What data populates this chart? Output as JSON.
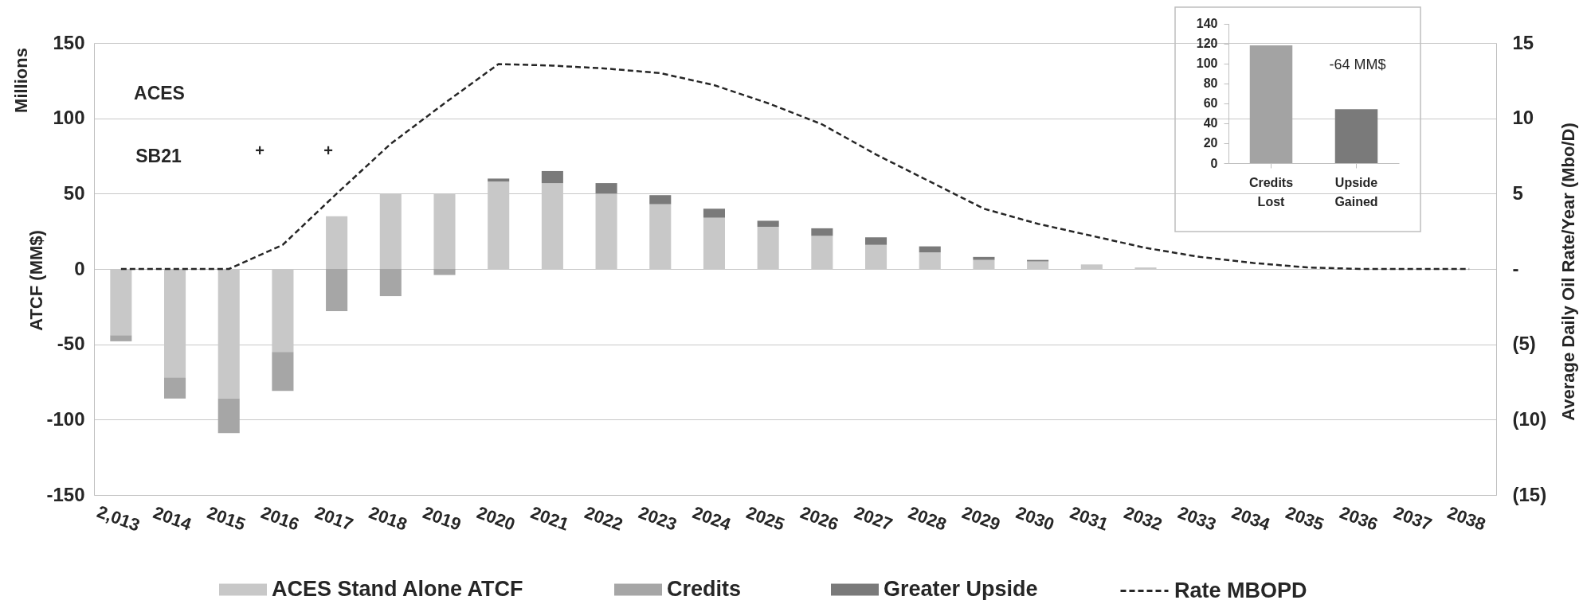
{
  "chart_data": [
    {
      "type": "bar",
      "stacked": true,
      "categories": [
        "2,013",
        "2014",
        "2015",
        "2016",
        "2017",
        "2018",
        "2019",
        "2020",
        "2021",
        "2022",
        "2023",
        "2024",
        "2025",
        "2026",
        "2027",
        "2028",
        "2029",
        "2030",
        "2031",
        "2032",
        "2033",
        "2034",
        "2035",
        "2036",
        "2037",
        "2038"
      ],
      "series": [
        {
          "name": "ACES Stand Alone ATCF",
          "color": "#c8c8c8",
          "values": [
            -44,
            -72,
            -86,
            -55,
            35,
            50,
            50,
            58,
            57,
            50,
            43,
            34,
            28,
            22,
            16,
            11,
            6,
            5,
            3,
            1,
            null,
            null,
            null,
            null,
            null,
            null
          ]
        },
        {
          "name": "Credits",
          "color": "#a6a6a6",
          "values": [
            -4,
            -14,
            -23,
            -26,
            -28,
            -18,
            -4,
            null,
            null,
            null,
            null,
            null,
            null,
            null,
            null,
            null,
            null,
            null,
            null,
            null,
            null,
            null,
            null,
            null,
            null,
            null
          ]
        },
        {
          "name": "Greater Upside",
          "color": "#7a7a7a",
          "values": [
            null,
            null,
            null,
            null,
            null,
            null,
            null,
            2,
            8,
            7,
            6,
            6,
            4,
            5,
            5,
            4,
            2,
            1,
            null,
            null,
            null,
            null,
            null,
            null,
            null,
            null
          ]
        },
        {
          "name": "Rate MBOPD",
          "type": "line",
          "axis": "y2",
          "color": "#262626",
          "values": [
            0,
            0,
            0,
            1.6,
            5.0,
            8.3,
            11.0,
            13.6,
            13.5,
            13.3,
            13.0,
            12.2,
            11.0,
            9.6,
            7.6,
            5.8,
            4.0,
            3.0,
            2.2,
            1.4,
            0.8,
            0.4,
            0.1,
            0,
            0,
            0
          ]
        }
      ],
      "line_style": "dashed",
      "marker": "none",
      "ylabel": "ATCF (MM$)",
      "y2label": "Average Daily Oil Rate/Year (Mbo/D)",
      "ylim": [
        -150,
        150
      ],
      "yticks": [
        -150,
        -100,
        -50,
        0,
        50,
        100,
        150
      ],
      "y2lim": [
        -15,
        15
      ],
      "y2ticks": [
        {
          "value": -15,
          "label": "(15)"
        },
        {
          "value": -10,
          "label": "(10)"
        },
        {
          "value": -5,
          "label": "(5)"
        },
        {
          "value": 0,
          "label": "-"
        },
        5,
        10,
        15
      ],
      "grid": "y",
      "legend": "bottom",
      "annotations": [
        "Millions",
        "ACES",
        "SB21",
        "+",
        "+"
      ]
    },
    {
      "type": "bar",
      "categories": [
        "Credits Lost",
        "Upside Gained"
      ],
      "values": [
        118,
        54
      ],
      "colors": [
        "#a3a3a3",
        "#7a7a7a"
      ],
      "ylim": [
        0,
        140
      ],
      "yticks": [
        0,
        20,
        40,
        60,
        80,
        100,
        120,
        140
      ],
      "grid": false,
      "annotations": [
        "-64 MM$"
      ]
    }
  ]
}
